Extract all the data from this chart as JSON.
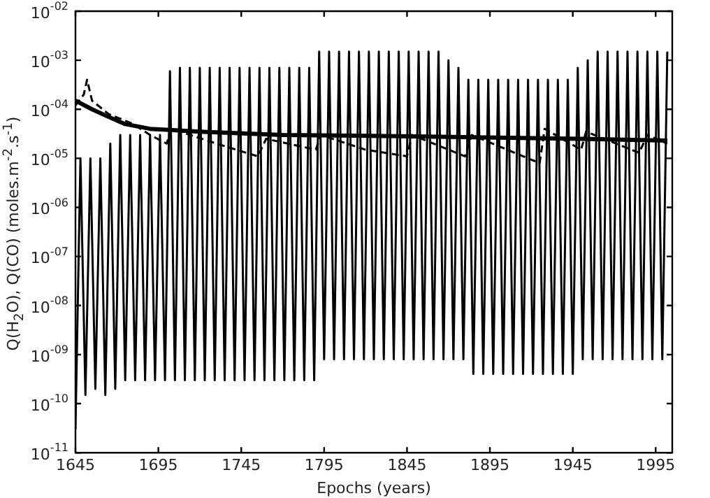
{
  "chart_data": {
    "type": "line",
    "xlabel": "Epochs (years)",
    "ylabel": "Q(H$_{2}$O), Q(CO) (moles.m$^{-2}$.s$^{-1}$)",
    "log": "y",
    "grid": false,
    "legend": false,
    "marker": "none",
    "xlim": [
      1645,
      2005
    ],
    "xticks": [
      1645,
      1695,
      1745,
      1795,
      1845,
      1895,
      1945,
      1995
    ],
    "ylim": [
      1e-11,
      0.01
    ],
    "yticks": [
      {
        "value": 1e-11,
        "label": "10$^{-11}$"
      },
      {
        "value": 1e-10,
        "label": "10$^{-10}$"
      },
      {
        "value": 1e-09,
        "label": "10$^{-09}$"
      },
      {
        "value": 1e-08,
        "label": "10$^{-08}$"
      },
      {
        "value": 1e-07,
        "label": "10$^{-07}$"
      },
      {
        "value": 1e-06,
        "label": "10$^{-06}$"
      },
      {
        "value": 1e-05,
        "label": "10$^{-05}$"
      },
      {
        "value": 0.0001,
        "label": "10$^{-04}$"
      },
      {
        "value": 0.001,
        "label": "10$^{-03}$"
      },
      {
        "value": 0.01,
        "label": "10$^{-02}$"
      }
    ],
    "series": [
      {
        "color": "#000000",
        "line_style": "solid",
        "x": [
          1645,
          1648,
          1651,
          1654,
          1657,
          1660,
          1663,
          1666,
          1669,
          1672,
          1675,
          1678,
          1681,
          1684,
          1687,
          1690,
          1693,
          1696,
          1699,
          1702,
          1705,
          1708,
          1711,
          1714,
          1717,
          1720,
          1723,
          1726,
          1729,
          1732,
          1735,
          1738,
          1741,
          1744,
          1747,
          1750,
          1753,
          1756,
          1759,
          1762,
          1765,
          1768,
          1771,
          1774,
          1777,
          1780,
          1783,
          1786,
          1789,
          1792,
          1795,
          1798,
          1801,
          1804,
          1807,
          1810,
          1813,
          1816,
          1819,
          1822,
          1825,
          1828,
          1831,
          1834,
          1837,
          1840,
          1843,
          1846,
          1849,
          1852,
          1855,
          1858,
          1861,
          1864,
          1867,
          1870,
          1873,
          1876,
          1879,
          1882,
          1885,
          1888,
          1891,
          1894,
          1897,
          1900,
          1903,
          1906,
          1909,
          1912,
          1915,
          1918,
          1921,
          1924,
          1927,
          1930,
          1933,
          1936,
          1939,
          1942,
          1945,
          1948,
          1951,
          1954,
          1957,
          1960,
          1963,
          1966,
          1969,
          1972,
          1975,
          1978,
          1981,
          1984,
          1987,
          1990,
          1993,
          1996,
          1999,
          2002
        ],
        "values": [
          3e-11,
          1e-05,
          1.5e-10,
          1e-05,
          2e-10,
          1e-05,
          1.5e-10,
          2e-05,
          2e-10,
          3e-05,
          3e-10,
          3e-05,
          3e-10,
          3e-05,
          3e-10,
          3e-05,
          3e-10,
          3e-05,
          3e-10,
          0.0006,
          3e-10,
          0.0007,
          3e-10,
          0.0007,
          3e-10,
          0.0007,
          3e-10,
          0.0007,
          3e-10,
          0.0007,
          3e-10,
          0.0007,
          3e-10,
          0.0007,
          3e-10,
          0.0007,
          3e-10,
          0.0007,
          3e-10,
          0.0007,
          3e-10,
          0.0007,
          3e-10,
          0.0007,
          3e-10,
          0.0007,
          3e-10,
          0.0007,
          3e-10,
          0.0015,
          8e-10,
          0.0015,
          8e-10,
          0.0015,
          8e-10,
          0.0015,
          8e-10,
          0.0015,
          8e-10,
          0.0015,
          8e-10,
          0.0015,
          8e-10,
          0.0015,
          8e-10,
          0.0015,
          8e-10,
          0.0015,
          8e-10,
          0.0015,
          8e-10,
          0.0015,
          8e-10,
          0.0015,
          8e-10,
          0.001,
          8e-10,
          0.0007,
          8e-10,
          0.0004,
          4e-10,
          0.0004,
          4e-10,
          0.0004,
          4e-10,
          0.0004,
          4e-10,
          0.0004,
          4e-10,
          0.0004,
          4e-10,
          0.0004,
          4e-10,
          0.0004,
          4e-10,
          0.0004,
          4e-10,
          0.0004,
          4e-10,
          0.0004,
          4e-10,
          0.0007,
          8e-10,
          0.001,
          8e-10,
          0.0015,
          8e-10,
          0.0015,
          8e-10,
          0.0015,
          8e-10,
          0.0015,
          8e-10,
          0.0015,
          8e-10,
          0.0015,
          8e-10,
          0.0015,
          8e-10,
          0.0015
        ]
      },
      {
        "color": "#000000",
        "line_style": "solid",
        "x": [
          1645,
          1655,
          1665,
          1675,
          1690,
          1720,
          1770,
          1850,
          1950,
          2002
        ],
        "values": [
          0.00015,
          0.0001,
          7e-05,
          5e-05,
          4e-05,
          3.5e-05,
          3e-05,
          2.8e-05,
          2.5e-05,
          2.3e-05
        ]
      },
      {
        "color": "#000000",
        "line_style": "dashed",
        "x": [
          1645,
          1650,
          1652,
          1655,
          1665,
          1680,
          1690,
          1700,
          1703,
          1730,
          1755,
          1760,
          1790,
          1793,
          1820,
          1845,
          1848,
          1880,
          1884,
          1925,
          1928,
          1950,
          1953,
          1985,
          1990,
          2002
        ],
        "values": [
          0.00012,
          0.0002,
          0.0004,
          0.00015,
          8e-05,
          5e-05,
          3e-05,
          2e-05,
          4e-05,
          2e-05,
          1.1e-05,
          2.5e-05,
          1.5e-05,
          3e-05,
          1.5e-05,
          1.1e-05,
          3e-05,
          1.1e-05,
          3e-05,
          8e-06,
          4e-05,
          1.5e-05,
          3.5e-05,
          1.3e-05,
          3e-05,
          2e-05
        ]
      }
    ]
  }
}
